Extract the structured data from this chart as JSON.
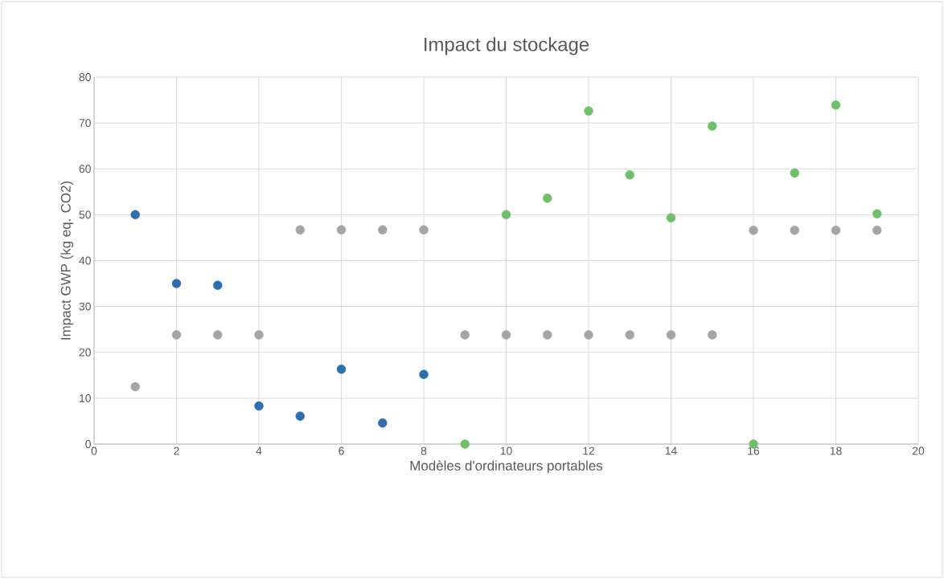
{
  "chart_data": {
    "type": "scatter",
    "title": "Impact du stockage",
    "xlabel": "Modèles d'ordinateurs portables",
    "ylabel": "Impact GWP (kg eq. CO2)",
    "xlim": [
      0,
      20
    ],
    "xticks": [
      0,
      2,
      4,
      6,
      8,
      10,
      12,
      14,
      16,
      18,
      20
    ],
    "ylim": [
      0,
      80
    ],
    "yticks": [
      0,
      10,
      20,
      30,
      40,
      50,
      60,
      70,
      80
    ],
    "grid": true,
    "marker": "circle",
    "series": [
      {
        "color": "#2e6fb0",
        "x": [
          1,
          2,
          3,
          4,
          5,
          6,
          7,
          8
        ],
        "values": [
          50,
          35,
          34.6,
          8.3,
          6.1,
          16.3,
          4.6,
          15.2
        ]
      },
      {
        "color": "#70bf6b",
        "x": [
          9,
          10,
          11,
          12,
          13,
          14,
          15,
          16,
          17,
          18,
          19
        ],
        "values": [
          0,
          50,
          53.6,
          72.6,
          58.7,
          49.3,
          69.3,
          0,
          59.1,
          73.9,
          50.2
        ]
      },
      {
        "color": "#a5a5a5",
        "x": [
          1,
          2,
          3,
          4,
          5,
          6,
          7,
          8,
          9,
          10,
          11,
          12,
          13,
          14,
          15,
          16,
          17,
          18,
          19
        ],
        "values": [
          12.5,
          23.8,
          23.8,
          23.8,
          46.7,
          46.7,
          46.7,
          46.7,
          23.8,
          23.8,
          23.8,
          23.8,
          23.8,
          23.8,
          23.8,
          46.6,
          46.6,
          46.6,
          46.6
        ]
      }
    ]
  }
}
